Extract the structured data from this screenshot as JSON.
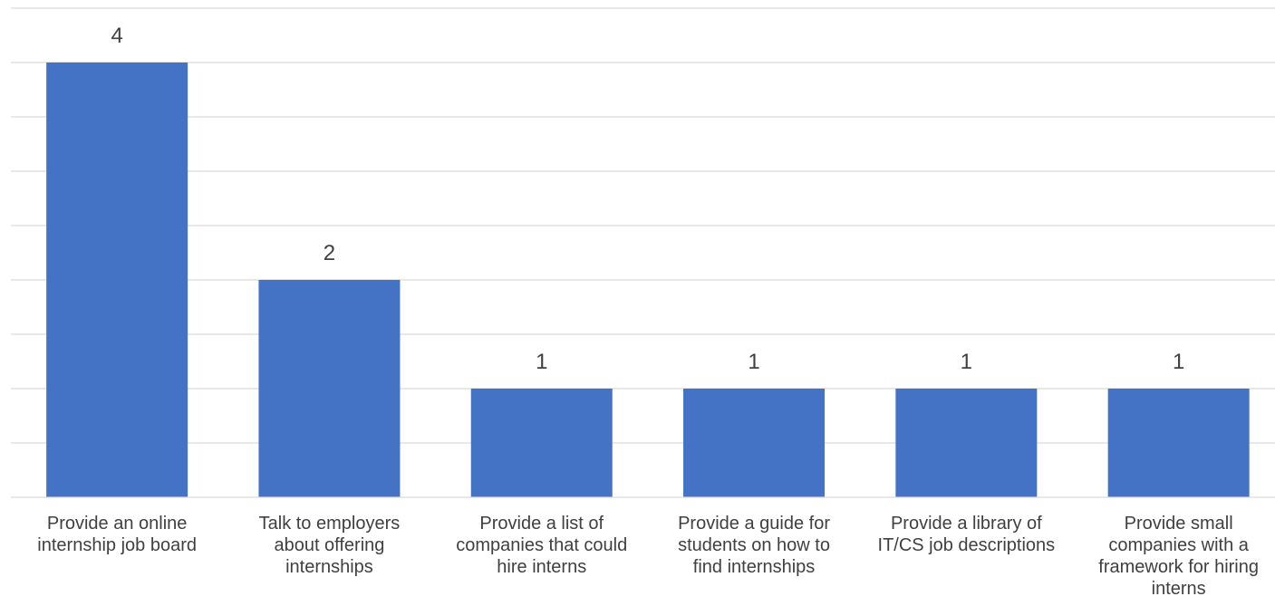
{
  "chart_data": {
    "type": "bar",
    "categories": [
      "Provide an online internship job board",
      "Talk to employers about offering internships",
      "Provide a list of companies that could hire interns",
      "Provide a guide for students on how to find internships",
      "Provide a library of IT/CS job descriptions",
      "Provide small companies with a framework for hiring interns"
    ],
    "values": [
      4,
      2,
      1,
      1,
      1,
      1
    ],
    "data_labels": [
      "4",
      "2",
      "1",
      "1",
      "1",
      "1"
    ],
    "ylim": [
      0,
      4.5
    ],
    "grid": true,
    "legend": "none",
    "bar_color": "#4472c4",
    "grid_color": "#d9d9d9",
    "text_color": "#404040"
  }
}
